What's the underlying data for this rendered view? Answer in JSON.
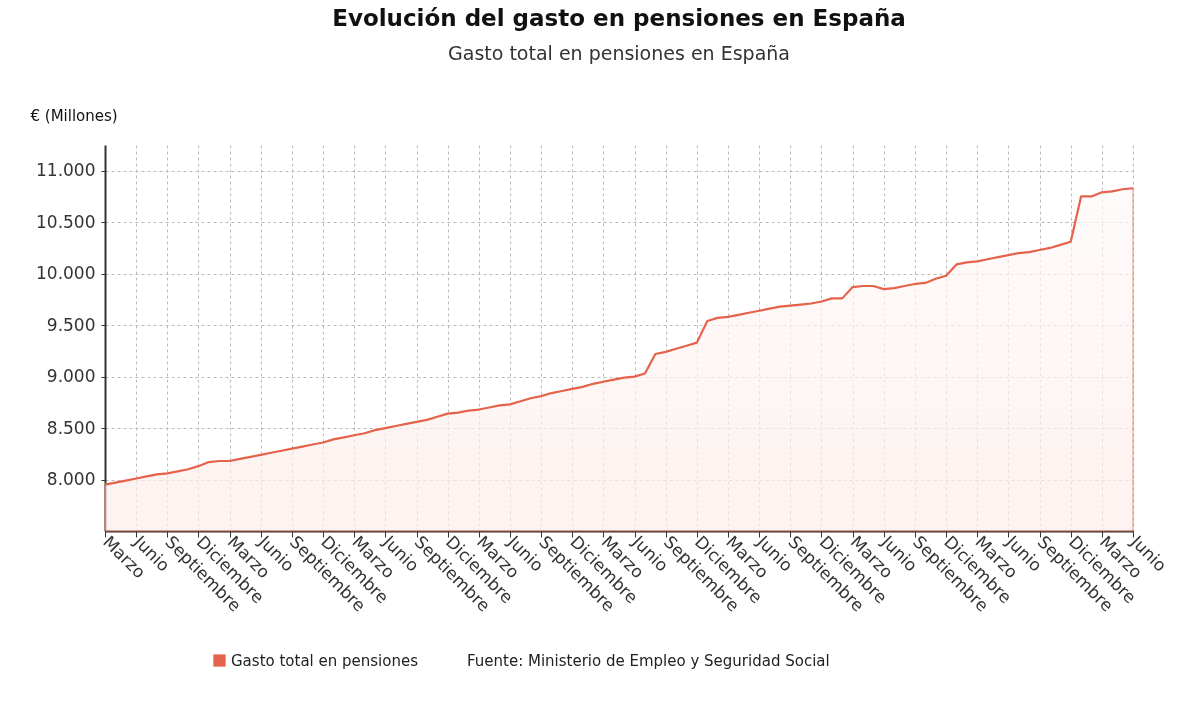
{
  "chart_data": {
    "type": "area",
    "title": "Evolución del gasto en pensiones en España",
    "subtitle": "Gasto total en pensiones en España",
    "ylabel": "€ (Millones)",
    "categories": [
      "Marzo",
      null,
      null,
      "Junio",
      null,
      null,
      "Septiembre",
      null,
      null,
      "Diciembre",
      null,
      null,
      "Marzo",
      null,
      null,
      "Junio",
      null,
      null,
      "Septiembre",
      null,
      null,
      "Diciembre",
      null,
      null,
      "Marzo",
      null,
      null,
      "Junio",
      null,
      null,
      "Septiembre",
      null,
      null,
      "Diciembre",
      null,
      null,
      "Marzo",
      null,
      null,
      "Junio",
      null,
      null,
      "Septiembre",
      null,
      null,
      "Diciembre",
      null,
      null,
      "Marzo",
      null,
      null,
      "Junio",
      null,
      null,
      "Septiembre",
      null,
      null,
      "Diciembre",
      null,
      null,
      "Marzo",
      null,
      null,
      "Junio",
      null,
      null,
      "Septiembre",
      null,
      null,
      "Diciembre",
      null,
      null,
      "Marzo",
      null,
      null,
      "Junio",
      null,
      null,
      "Septiembre",
      null,
      null,
      "Diciembre",
      null,
      null,
      "Marzo",
      null,
      null,
      "Junio",
      null,
      null,
      "Septiembre",
      null,
      null,
      "Diciembre",
      null,
      null,
      "Marzo",
      null,
      null,
      "Junio"
    ],
    "series": [
      {
        "name": "Gasto total en pensiones",
        "color": "#e5634b",
        "values": [
          7950,
          7970,
          7990,
          8010,
          8030,
          8050,
          8060,
          8080,
          8100,
          8130,
          8170,
          8180,
          8180,
          8200,
          8220,
          8240,
          8260,
          8280,
          8300,
          8320,
          8340,
          8360,
          8390,
          8410,
          8430,
          8450,
          8480,
          8500,
          8520,
          8540,
          8560,
          8580,
          8610,
          8640,
          8650,
          8670,
          8680,
          8700,
          8720,
          8730,
          8760,
          8790,
          8810,
          8840,
          8860,
          8880,
          8900,
          8930,
          8950,
          8970,
          8990,
          9000,
          9030,
          9220,
          9240,
          9270,
          9300,
          9330,
          9540,
          9570,
          9580,
          9600,
          9620,
          9640,
          9660,
          9680,
          9690,
          9700,
          9710,
          9730,
          9760,
          9760,
          9870,
          9880,
          9880,
          9850,
          9860,
          9880,
          9900,
          9910,
          9950,
          9980,
          10090,
          10110,
          10120,
          10140,
          10160,
          10180,
          10200,
          10210,
          10230,
          10250,
          10280,
          10310,
          10750,
          10750,
          10790,
          10800,
          10820,
          10830
        ]
      }
    ],
    "ylim": [
      7500,
      11250
    ],
    "yticks": [
      {
        "value": 8000,
        "label": "8.000"
      },
      {
        "value": 8500,
        "label": "8.500"
      },
      {
        "value": 9000,
        "label": "9.000"
      },
      {
        "value": 9500,
        "label": "9.500"
      },
      {
        "value": 10000,
        "label": "10.000"
      },
      {
        "value": 10500,
        "label": "10.500"
      },
      {
        "value": 11000,
        "label": "11.000"
      }
    ],
    "grid": true,
    "legend": "bottom",
    "annotations": [
      "Fuente: Ministerio de Empleo y Seguridad Social"
    ]
  }
}
